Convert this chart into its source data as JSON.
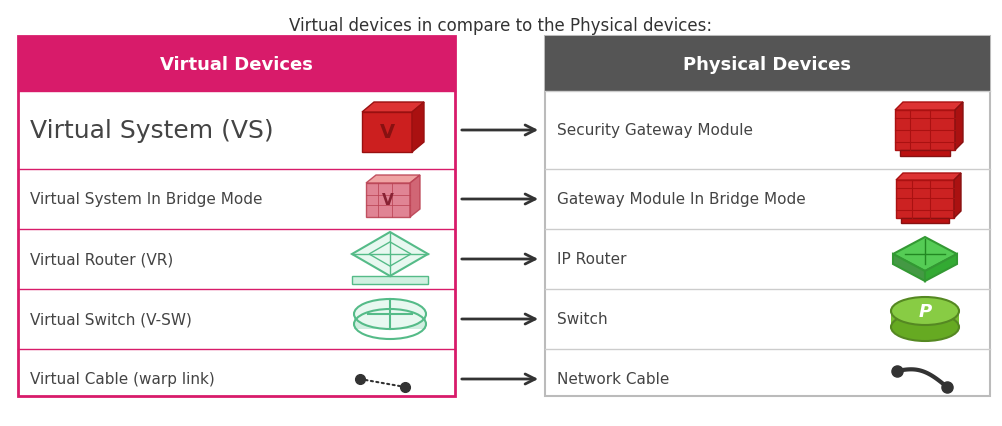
{
  "title": "Virtual devices in compare to the Physical devices:",
  "title_fontsize": 12,
  "left_header": "Virtual Devices",
  "right_header": "Physical Devices",
  "left_header_bg": "#D81B6A",
  "right_header_bg": "#555555",
  "header_text_color": "#FFFFFF",
  "left_border_color": "#D81B6A",
  "right_border_color": "#BBBBBB",
  "row_divider_left": "#D81B6A",
  "row_divider_right": "#CCCCCC",
  "background_color": "#FFFFFF",
  "text_color": "#444444",
  "virtual_items": [
    "Virtual System (VS)",
    "Virtual System In Bridge Mode",
    "Virtual Router (VR)",
    "Virtual Switch (V-SW)",
    "Virtual Cable (warp link)"
  ],
  "virtual_fontsizes": [
    18,
    11,
    11,
    11,
    11
  ],
  "physical_items": [
    "Security Gateway Module",
    "Gateway Module In Bridge Mode",
    "IP Router",
    "Switch",
    "Network Cable"
  ],
  "physical_fontsizes": [
    11,
    11,
    11,
    11,
    11
  ],
  "fig_width": 10.02,
  "fig_height": 4.27,
  "dpi": 100
}
